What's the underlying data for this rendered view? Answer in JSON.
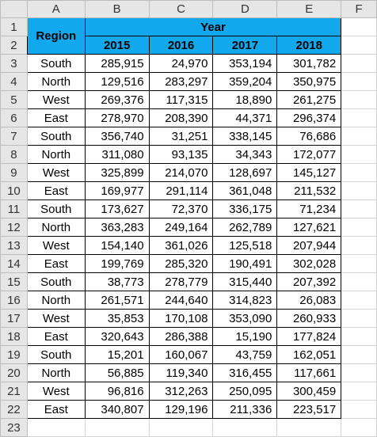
{
  "columns": [
    "A",
    "B",
    "C",
    "D",
    "E",
    "F"
  ],
  "row_numbers": [
    "1",
    "2",
    "3",
    "4",
    "5",
    "6",
    "7",
    "8",
    "9",
    "10",
    "11",
    "12",
    "13",
    "14",
    "15",
    "16",
    "17",
    "18",
    "19",
    "20",
    "21",
    "22",
    "23"
  ],
  "header": {
    "region": "Region",
    "year": "Year",
    "years": [
      "2015",
      "2016",
      "2017",
      "2018"
    ]
  },
  "rows": [
    {
      "region": "South",
      "values": [
        "285,915",
        "24,970",
        "353,194",
        "301,782"
      ]
    },
    {
      "region": "North",
      "values": [
        "129,516",
        "283,297",
        "359,204",
        "350,975"
      ]
    },
    {
      "region": "West",
      "values": [
        "269,376",
        "117,315",
        "18,890",
        "261,275"
      ]
    },
    {
      "region": "East",
      "values": [
        "278,970",
        "208,390",
        "44,371",
        "296,374"
      ]
    },
    {
      "region": "South",
      "values": [
        "356,740",
        "31,251",
        "338,145",
        "76,686"
      ]
    },
    {
      "region": "North",
      "values": [
        "311,080",
        "93,135",
        "34,343",
        "172,077"
      ]
    },
    {
      "region": "West",
      "values": [
        "325,899",
        "214,070",
        "128,697",
        "145,127"
      ]
    },
    {
      "region": "East",
      "values": [
        "169,977",
        "291,114",
        "361,048",
        "211,532"
      ]
    },
    {
      "region": "South",
      "values": [
        "173,627",
        "72,370",
        "336,175",
        "71,234"
      ]
    },
    {
      "region": "North",
      "values": [
        "363,283",
        "249,164",
        "262,789",
        "127,621"
      ]
    },
    {
      "region": "West",
      "values": [
        "154,140",
        "361,026",
        "125,518",
        "207,944"
      ]
    },
    {
      "region": "East",
      "values": [
        "199,769",
        "285,320",
        "190,491",
        "302,028"
      ]
    },
    {
      "region": "South",
      "values": [
        "38,773",
        "278,779",
        "315,440",
        "207,392"
      ]
    },
    {
      "region": "North",
      "values": [
        "261,571",
        "244,640",
        "314,823",
        "26,083"
      ]
    },
    {
      "region": "West",
      "values": [
        "35,853",
        "170,108",
        "353,090",
        "260,933"
      ]
    },
    {
      "region": "East",
      "values": [
        "320,643",
        "286,388",
        "15,190",
        "177,824"
      ]
    },
    {
      "region": "South",
      "values": [
        "15,201",
        "160,067",
        "43,759",
        "162,051"
      ]
    },
    {
      "region": "North",
      "values": [
        "56,885",
        "119,340",
        "316,455",
        "117,661"
      ]
    },
    {
      "region": "West",
      "values": [
        "96,816",
        "312,263",
        "250,095",
        "300,459"
      ]
    },
    {
      "region": "East",
      "values": [
        "340,807",
        "129,196",
        "211,336",
        "223,517"
      ]
    }
  ]
}
